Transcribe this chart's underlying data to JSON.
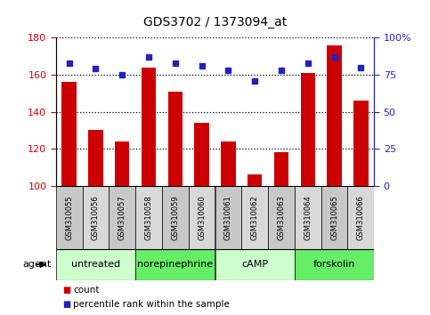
{
  "title": "GDS3702 / 1373094_at",
  "samples": [
    "GSM310055",
    "GSM310056",
    "GSM310057",
    "GSM310058",
    "GSM310059",
    "GSM310060",
    "GSM310061",
    "GSM310062",
    "GSM310063",
    "GSM310064",
    "GSM310065",
    "GSM310066"
  ],
  "count_values": [
    156,
    130,
    124,
    164,
    151,
    134,
    124,
    106,
    118,
    161,
    176,
    146
  ],
  "percentile_values": [
    83,
    79,
    75,
    87,
    83,
    81,
    78,
    71,
    78,
    83,
    87,
    80
  ],
  "bar_color": "#cc0000",
  "dot_color": "#2222bb",
  "ylim_left": [
    100,
    180
  ],
  "ylim_right": [
    0,
    100
  ],
  "yticks_left": [
    100,
    120,
    140,
    160,
    180
  ],
  "ytick_labels_left": [
    "100",
    "120",
    "140",
    "160",
    "180"
  ],
  "yticks_right": [
    0,
    25,
    50,
    75,
    100
  ],
  "ytick_labels_right": [
    "0",
    "25",
    "50",
    "75",
    "100%"
  ],
  "groups": [
    {
      "label": "untreated",
      "start": 0,
      "end": 3,
      "color": "#ccffcc"
    },
    {
      "label": "norepinephrine",
      "start": 3,
      "end": 6,
      "color": "#66ee66"
    },
    {
      "label": "cAMP",
      "start": 6,
      "end": 9,
      "color": "#ccffcc"
    },
    {
      "label": "forskolin",
      "start": 9,
      "end": 12,
      "color": "#66ee66"
    }
  ],
  "legend_count_label": "count",
  "legend_percentile_label": "percentile rank within the sample",
  "agent_label": "agent",
  "bar_width": 0.55,
  "sample_box_color_even": "#c8c8c8",
  "sample_box_color_odd": "#d8d8d8",
  "grid_linestyle": "dotted",
  "grid_color": "#000000"
}
